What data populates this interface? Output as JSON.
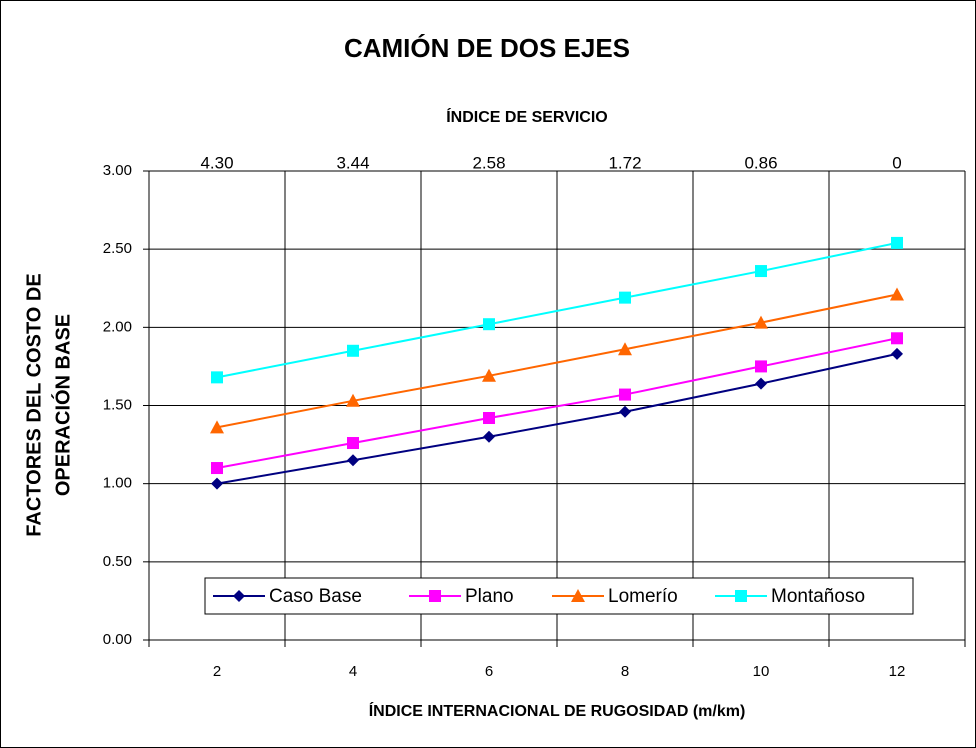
{
  "chart_data": {
    "type": "line",
    "title": "CAMIÓN DE DOS EJES",
    "x2label": "ÍNDICE DE SERVICIO",
    "x2_categories": [
      "4.30",
      "3.44",
      "2.58",
      "1.72",
      "0.86",
      "0"
    ],
    "xlabel": "ÍNDICE INTERNACIONAL DE RUGOSIDAD (m/km)",
    "ylabel": [
      "FACTORES DEL COSTO DE",
      "OPERACIÓN BASE"
    ],
    "categories": [
      "2",
      "4",
      "6",
      "8",
      "10",
      "12"
    ],
    "ylim": [
      0,
      3
    ],
    "yticks": [
      {
        "value": 0,
        "label": "0.00"
      },
      {
        "value": 0.5,
        "label": "0.50"
      },
      {
        "value": 1,
        "label": "1.00"
      },
      {
        "value": 1.5,
        "label": "1.50"
      },
      {
        "value": 2,
        "label": "2.00"
      },
      {
        "value": 2.5,
        "label": "2.50"
      },
      {
        "value": 3,
        "label": "3.00"
      }
    ],
    "grid": true,
    "legend": "bottom",
    "series": [
      {
        "name": "Caso Base",
        "color": "#000080",
        "marker": "diamond",
        "values": [
          1.0,
          1.15,
          1.3,
          1.46,
          1.64,
          1.83
        ]
      },
      {
        "name": "Plano",
        "color": "#FF00FF",
        "marker": "square",
        "values": [
          1.1,
          1.26,
          1.42,
          1.57,
          1.75,
          1.93
        ]
      },
      {
        "name": "Lomerío",
        "color": "#FF6600",
        "marker": "triangle",
        "values": [
          1.36,
          1.53,
          1.69,
          1.86,
          2.03,
          2.21
        ]
      },
      {
        "name": "Montañoso",
        "color": "#00FFFF",
        "marker": "square",
        "values": [
          1.68,
          1.85,
          2.02,
          2.19,
          2.36,
          2.54
        ]
      }
    ]
  }
}
